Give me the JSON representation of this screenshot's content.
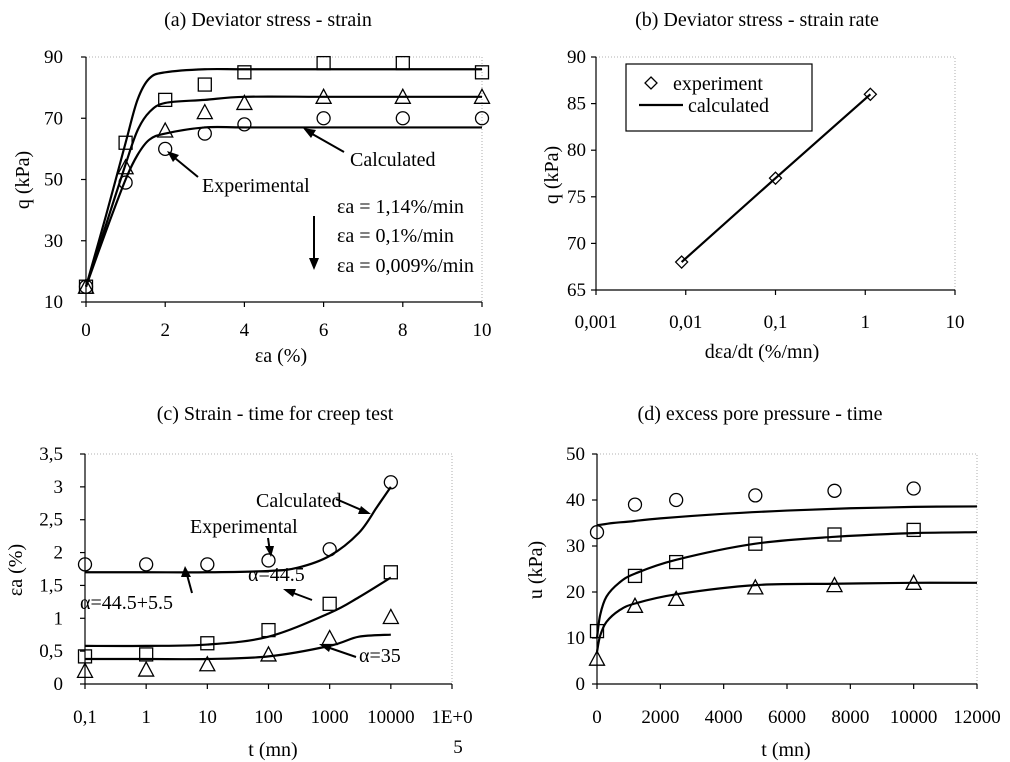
{
  "chart_data": [
    {
      "type": "line",
      "title": "(a) Deviator stress - strain",
      "xlabel": "εa (%)",
      "ylabel": "q (kPa)",
      "xlim": [
        0,
        10
      ],
      "ylim": [
        10,
        90
      ],
      "xticks": [
        "0",
        "2",
        "4",
        "6",
        "8",
        "10"
      ],
      "yticks": [
        "10",
        "30",
        "50",
        "70",
        "90"
      ],
      "series": [
        {
          "marker": "square",
          "kind": "experimental",
          "x": [
            0,
            1,
            2,
            3,
            4,
            6,
            8,
            10
          ],
          "y": [
            15,
            62,
            76,
            81,
            85,
            88,
            88,
            85
          ]
        },
        {
          "marker": "triangle",
          "kind": "experimental",
          "x": [
            0,
            1,
            2,
            3,
            4,
            6,
            8,
            10
          ],
          "y": [
            15,
            54,
            66,
            72,
            75,
            77,
            77,
            77
          ]
        },
        {
          "marker": "circle",
          "kind": "experimental",
          "x": [
            0,
            1,
            2,
            3,
            4,
            6,
            8,
            10
          ],
          "y": [
            15,
            49,
            60,
            65,
            68,
            70,
            70,
            70
          ]
        },
        {
          "kind": "calculated",
          "x": [
            0,
            0.5,
            1,
            1.3,
            1.6,
            2,
            3,
            4,
            6,
            8,
            10
          ],
          "y": [
            15,
            38,
            62,
            76,
            83,
            85,
            86,
            86,
            86,
            86,
            86
          ]
        },
        {
          "kind": "calculated",
          "x": [
            0,
            0.5,
            1,
            1.3,
            1.6,
            2,
            3,
            4,
            6,
            8,
            10
          ],
          "y": [
            15,
            35,
            55,
            66,
            72,
            75,
            76,
            77,
            77,
            77,
            77
          ]
        },
        {
          "kind": "calculated",
          "x": [
            0,
            0.5,
            1,
            1.3,
            1.6,
            2,
            3,
            4,
            6,
            8,
            10
          ],
          "y": [
            15,
            33,
            50,
            58,
            63,
            65,
            67,
            67,
            67,
            67,
            67
          ]
        }
      ],
      "annotations": [
        "Experimental",
        "Calculated",
        "εa = 1,14%/min",
        "εa = 0,1%/min",
        "εa = 0,009%/min"
      ]
    },
    {
      "type": "scatter",
      "title": "(b) Deviator stress - strain rate",
      "xlabel": "dεa/dt (%/mn)",
      "ylabel": "q (kPa)",
      "xscale": "log",
      "xlim": [
        0.001,
        10
      ],
      "ylim": [
        65,
        90
      ],
      "xticks": [
        "0,001",
        "0,01",
        "0,1",
        "1",
        "10"
      ],
      "yticks": [
        "65",
        "70",
        "75",
        "80",
        "85",
        "90"
      ],
      "legend": [
        "experiment",
        "calculated"
      ],
      "legend_position": "top-left",
      "series": [
        {
          "name": "experiment",
          "marker": "diamond",
          "x": [
            0.009,
            0.1,
            1.14
          ],
          "y": [
            68,
            77,
            86
          ]
        },
        {
          "name": "calculated",
          "x": [
            0.009,
            0.1,
            1.14
          ],
          "y": [
            68,
            77,
            86
          ]
        }
      ]
    },
    {
      "type": "line",
      "title": "(c) Strain - time for creep test",
      "xlabel": "t (mn)",
      "ylabel": "εa (%)",
      "xscale": "log",
      "xlim": [
        0.1,
        100000
      ],
      "ylim": [
        0,
        3.5
      ],
      "xticks": [
        "0,1",
        "1",
        "10",
        "100",
        "1000",
        "10000",
        "1E+0"
      ],
      "xtick_overflow": "5",
      "yticks": [
        "0",
        "0,5",
        "1",
        "1,5",
        "2",
        "2,5",
        "3",
        "3,5"
      ],
      "series": [
        {
          "marker": "circle",
          "kind": "experimental",
          "x": [
            0.1,
            1,
            10,
            100,
            1000,
            10000
          ],
          "y": [
            1.82,
            1.82,
            1.82,
            1.88,
            2.05,
            3.07
          ]
        },
        {
          "marker": "square",
          "kind": "experimental",
          "x": [
            0.1,
            1,
            10,
            100,
            1000,
            10000
          ],
          "y": [
            0.42,
            0.45,
            0.62,
            0.82,
            1.22,
            1.7
          ]
        },
        {
          "marker": "triangle",
          "kind": "experimental",
          "x": [
            0.1,
            1,
            10,
            100,
            1000,
            10000
          ],
          "y": [
            0.2,
            0.22,
            0.3,
            0.45,
            0.7,
            1.02
          ]
        },
        {
          "kind": "calculated",
          "x": [
            0.1,
            1,
            10,
            100,
            300,
            1000,
            3000,
            6000,
            10000
          ],
          "y": [
            1.7,
            1.7,
            1.7,
            1.72,
            1.77,
            1.95,
            2.3,
            2.7,
            3.0
          ]
        },
        {
          "kind": "calculated",
          "x": [
            0.1,
            1,
            10,
            100,
            1000,
            3000,
            10000
          ],
          "y": [
            0.58,
            0.58,
            0.6,
            0.72,
            1.08,
            1.32,
            1.62
          ]
        },
        {
          "kind": "calculated",
          "x": [
            0.1,
            1,
            10,
            100,
            1000,
            3000,
            10000
          ],
          "y": [
            0.38,
            0.38,
            0.38,
            0.42,
            0.58,
            0.72,
            0.75
          ]
        }
      ],
      "annotations": [
        "Calculated",
        "Experimental",
        "α=44.5+5.5",
        "α=44.5",
        "α=35"
      ]
    },
    {
      "type": "line",
      "title": "(d) excess pore pressure - time",
      "xlabel": "t (mn)",
      "ylabel": "u (kPa)",
      "xlim": [
        0,
        12000
      ],
      "ylim": [
        0,
        50
      ],
      "xticks": [
        "0",
        "2000",
        "4000",
        "6000",
        "8000",
        "10000",
        "12000"
      ],
      "yticks": [
        "0",
        "10",
        "20",
        "30",
        "40",
        "50"
      ],
      "series": [
        {
          "marker": "circle",
          "kind": "experimental",
          "x": [
            0,
            1200,
            2500,
            5000,
            7500,
            10000
          ],
          "y": [
            33,
            39,
            40,
            41,
            42,
            42.5
          ]
        },
        {
          "marker": "square",
          "kind": "experimental",
          "x": [
            0,
            1200,
            2500,
            5000,
            7500,
            10000
          ],
          "y": [
            11.5,
            23.5,
            26.5,
            30.5,
            32.5,
            33.5
          ]
        },
        {
          "marker": "triangle",
          "kind": "experimental",
          "x": [
            0,
            1200,
            2500,
            5000,
            7500,
            10000
          ],
          "y": [
            5.5,
            17,
            18.5,
            21,
            21.5,
            22
          ]
        },
        {
          "kind": "calculated",
          "x": [
            0,
            500,
            1000,
            2000,
            4000,
            6000,
            8000,
            10000,
            12000
          ],
          "y": [
            34.5,
            35,
            35.3,
            36,
            37,
            37.7,
            38.2,
            38.5,
            38.6
          ]
        },
        {
          "kind": "calculated",
          "x": [
            0,
            100,
            300,
            700,
            1200,
            2500,
            5000,
            7500,
            10000,
            12000
          ],
          "y": [
            10,
            15,
            19,
            22,
            24,
            27,
            30.5,
            32,
            32.8,
            33
          ]
        },
        {
          "kind": "calculated",
          "x": [
            0,
            100,
            300,
            700,
            1200,
            2500,
            5000,
            7500,
            10000,
            12000
          ],
          "y": [
            7,
            10.5,
            13.5,
            16,
            17.5,
            19.5,
            21.5,
            21.8,
            22,
            22
          ]
        }
      ]
    }
  ]
}
